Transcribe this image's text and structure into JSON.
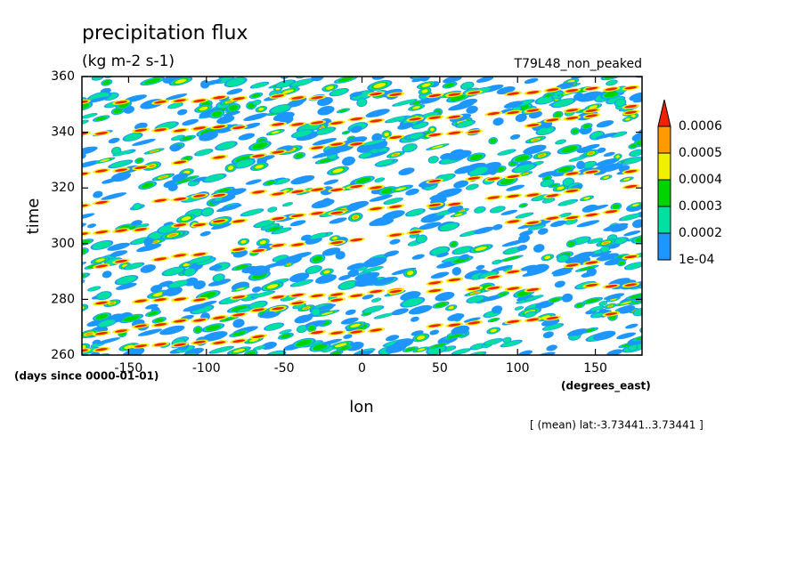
{
  "chart_data": {
    "type": "contour",
    "title": "precipitation flux",
    "subtitle": "(kg m-2 s-1)",
    "annotation": "T79L48_non_peaked",
    "x_label": "lon",
    "y_label": "time",
    "x_units": "(degrees_east)",
    "y_units": "(days since 0000-01-01)",
    "footnote": "[ (mean) lat:-3.73441..3.73441 ]",
    "xlim": [
      -180,
      180
    ],
    "xticks": [
      -150,
      -100,
      -50,
      0,
      50,
      100,
      150
    ],
    "ylim": [
      260,
      360
    ],
    "yticks": [
      260,
      280,
      300,
      320,
      340,
      360
    ],
    "levels": [
      {
        "value": 0.0001,
        "label": "1e-04"
      },
      0.0002,
      0.0003,
      0.0004,
      0.0005,
      0.0006
    ],
    "colors": [
      "#1e96ff",
      "#00e0a0",
      "#00d400",
      "#f0f000",
      "#ff9a00",
      "#f02000"
    ]
  }
}
